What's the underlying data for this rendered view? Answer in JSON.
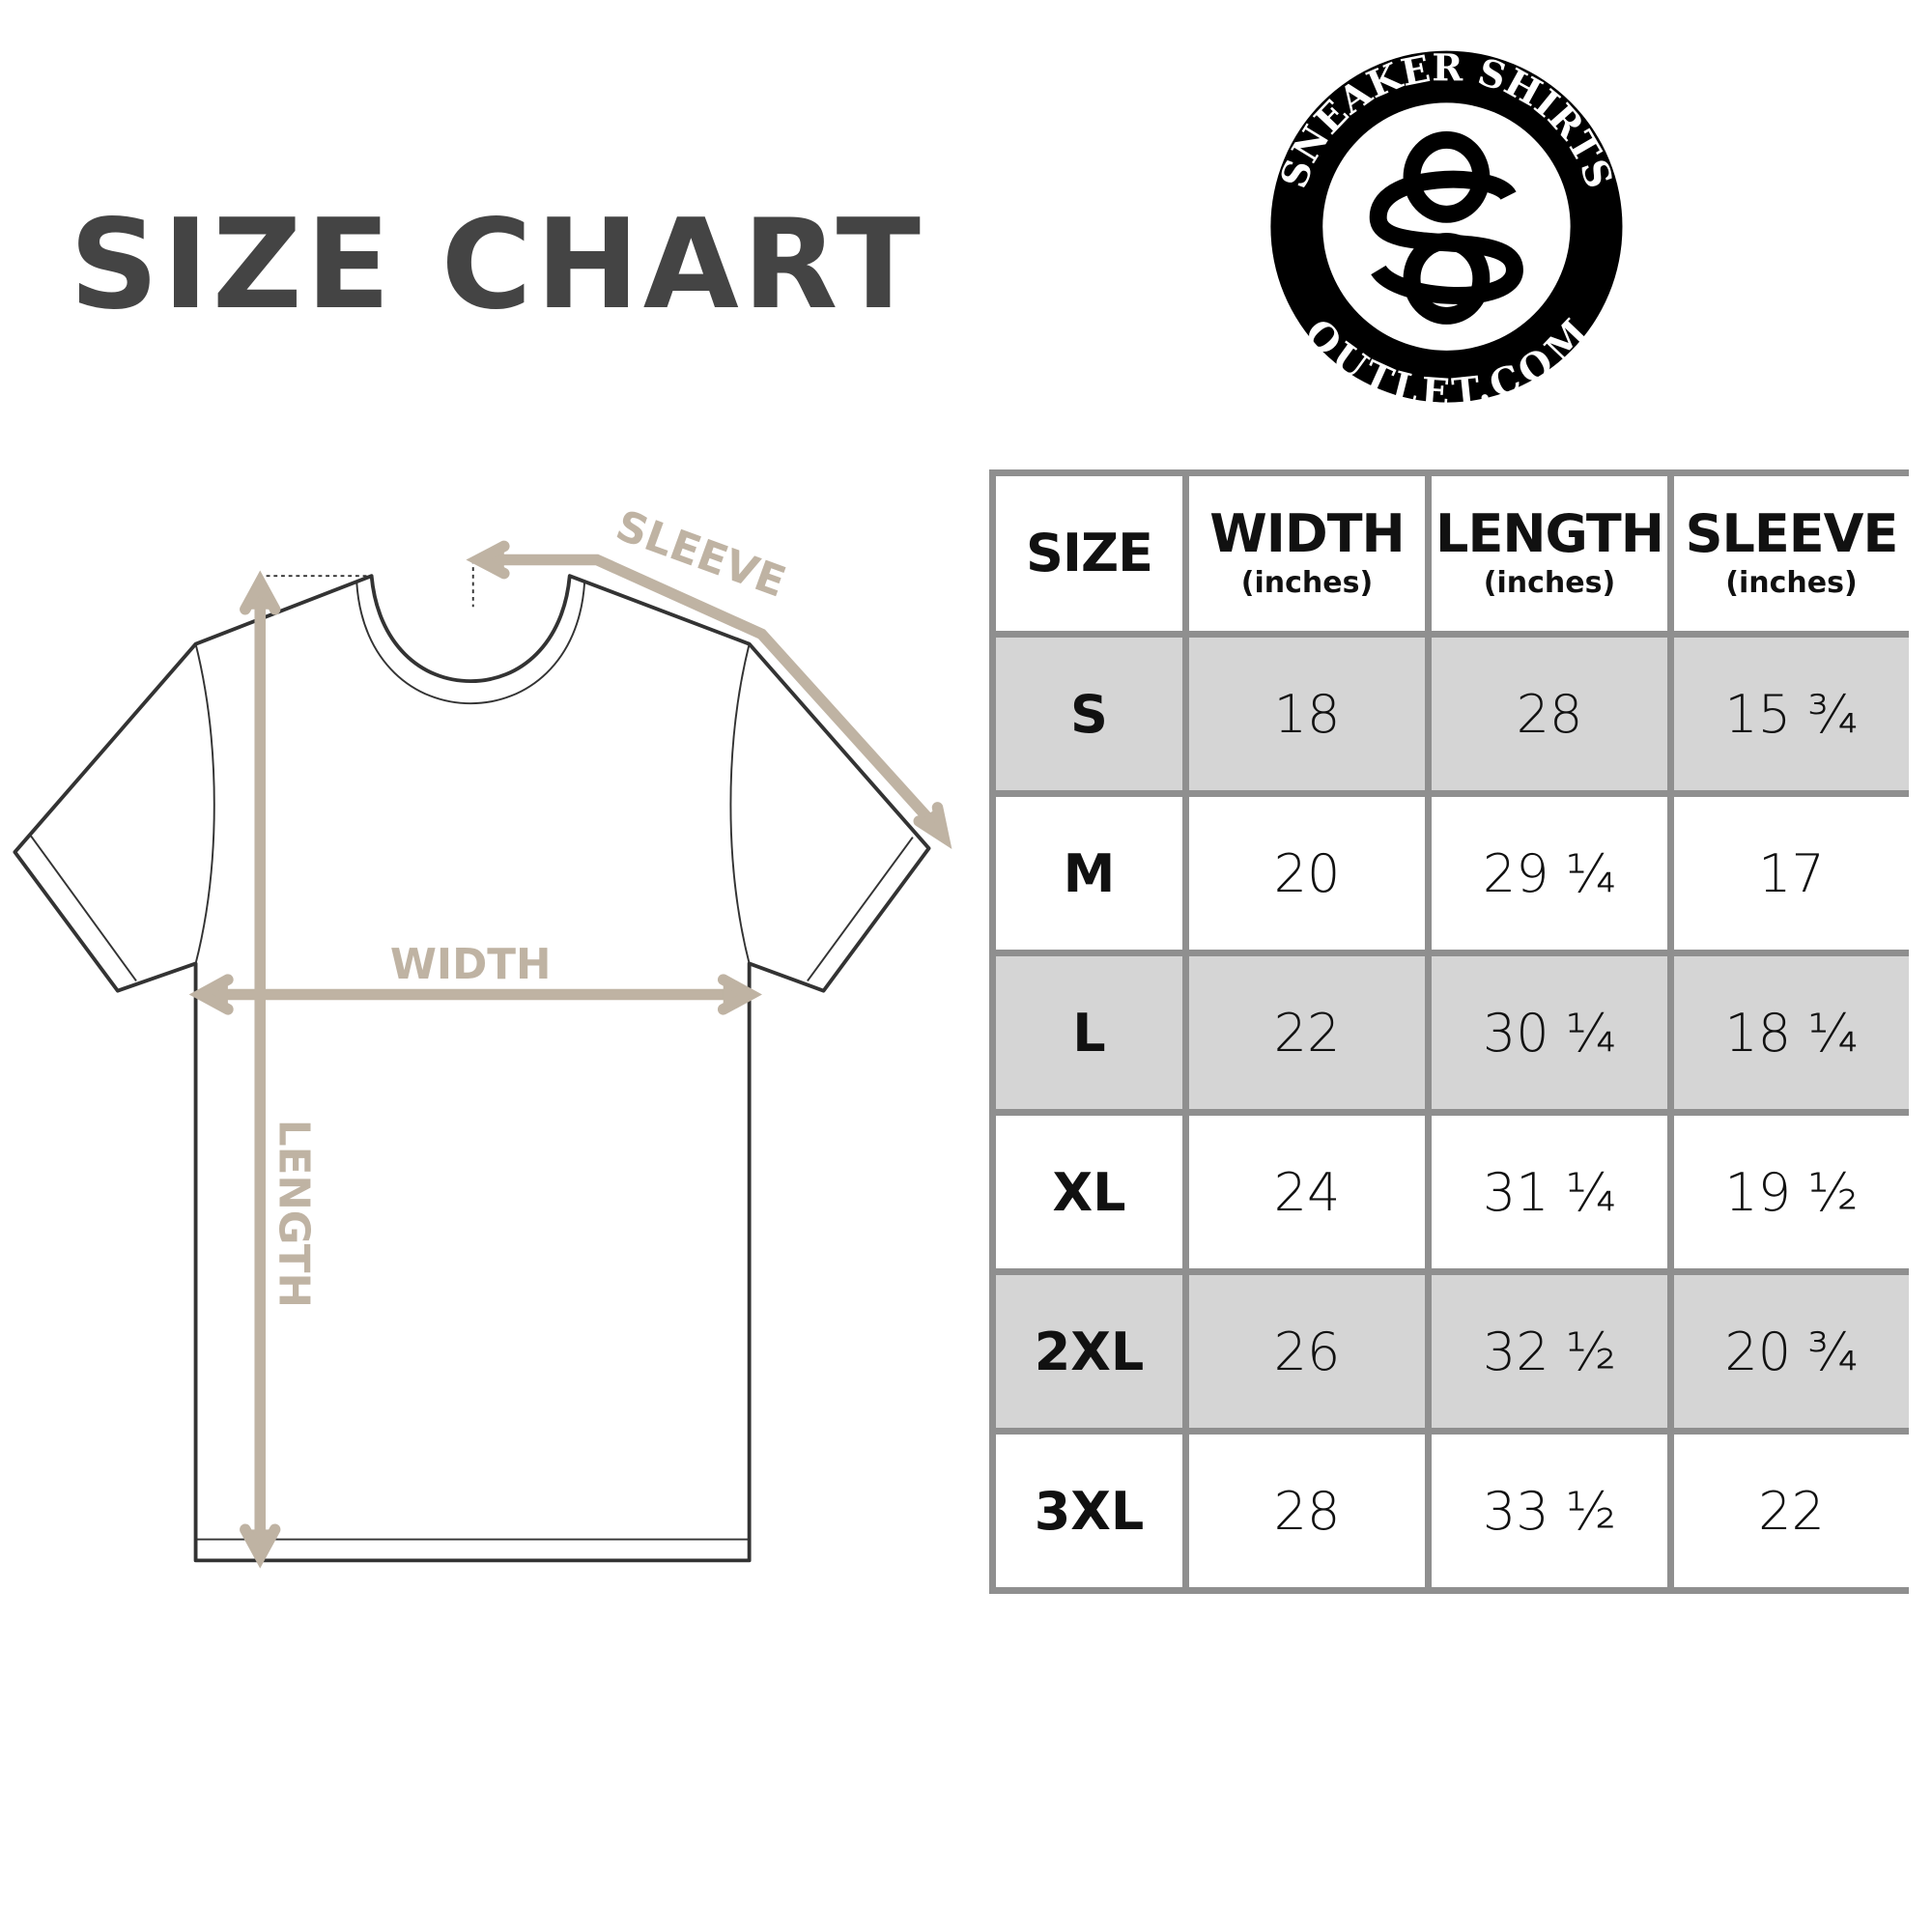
{
  "title": "SIZE CHART",
  "logo": {
    "top_text": "SNEAKER SHIRTS",
    "bottom_text": "OUTLET.COM",
    "monogram": "SO"
  },
  "diagram": {
    "sleeve_label": "SLEEVE",
    "width_label": "WIDTH",
    "length_label": "LENGTH",
    "arrow_color": "#bfb3a3"
  },
  "table": {
    "headers": [
      {
        "label": "SIZE",
        "unit": ""
      },
      {
        "label": "WIDTH",
        "unit": "(inches)"
      },
      {
        "label": "LENGTH",
        "unit": "(inches)"
      },
      {
        "label": "SLEEVE",
        "unit": "(inches)"
      }
    ],
    "rows": [
      [
        "S",
        "18",
        "28",
        "15 ¾"
      ],
      [
        "M",
        "20",
        "29 ¼",
        "17"
      ],
      [
        "L",
        "22",
        "30 ¼",
        "18 ¼"
      ],
      [
        "XL",
        "24",
        "31 ¼",
        "19 ½"
      ],
      [
        "2XL",
        "26",
        "32 ½",
        "20 ¾"
      ],
      [
        "3XL",
        "28",
        "33 ½",
        "22"
      ]
    ],
    "shade_color": "#d5d5d5",
    "border_color": "#8f8f8f"
  }
}
